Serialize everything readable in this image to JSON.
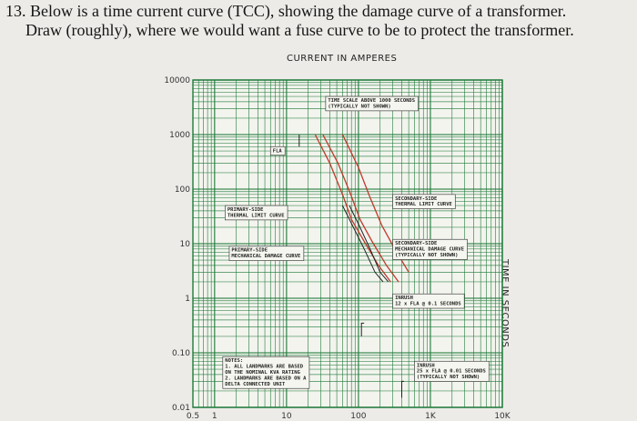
{
  "question": {
    "line1": "13. Below is a time current curve (TCC), showing the damage curve of a transformer.",
    "line2": "Draw (roughly), where we would want a fuse curve to be to protect the transformer."
  },
  "colors": {
    "grid": "#1f7a3a",
    "damage_curve": "#c0392b",
    "device_curve": "#222222",
    "background": "#ecebe8"
  },
  "chart_data": {
    "type": "line",
    "xlabel": "CURRENT IN AMPERES",
    "ylabel": "TIME IN SECONDS",
    "x_scale": "log",
    "y_scale": "log",
    "xlim": [
      0.5,
      10000
    ],
    "ylim": [
      0.01,
      10000
    ],
    "x_ticks": [
      {
        "value": 0.5,
        "label": "0.5"
      },
      {
        "value": 1,
        "label": "1"
      },
      {
        "value": 10,
        "label": "10"
      },
      {
        "value": 100,
        "label": "100"
      },
      {
        "value": 1000,
        "label": "1K"
      },
      {
        "value": 10000,
        "label": "10K"
      }
    ],
    "y_ticks": [
      {
        "value": 10000,
        "label": "10000"
      },
      {
        "value": 1000,
        "label": "1000"
      },
      {
        "value": 100,
        "label": "100"
      },
      {
        "value": 10,
        "label": "10"
      },
      {
        "value": 1,
        "label": "1"
      },
      {
        "value": 0.1,
        "label": "0.10"
      },
      {
        "value": 0.01,
        "label": "0.01"
      }
    ],
    "grid": true,
    "annotations": [
      {
        "lines": [
          "TIME SCALE ABOVE 1000 SECONDS",
          "(TYPICALLY NOT SHOWN)"
        ],
        "x": 35,
        "y": 5000,
        "wide": true
      },
      {
        "lines": [
          "FLA"
        ],
        "x": 6,
        "y": 600,
        "wide": false
      },
      {
        "lines": [
          "PRIMARY-SIDE",
          "THERMAL LIMIT CURVE"
        ],
        "x": 1.4,
        "y": 50,
        "wide": false
      },
      {
        "lines": [
          "PRIMARY-SIDE",
          "MECHANICAL DAMAGE CURVE"
        ],
        "x": 1.6,
        "y": 9,
        "wide": true
      },
      {
        "lines": [
          "SECONDARY-SIDE",
          "THERMAL LIMIT CURVE"
        ],
        "x": 300,
        "y": 80,
        "wide": true
      },
      {
        "lines": [
          "SECONDARY-SIDE",
          "MECHANICAL DAMAGE CURVE",
          "(TYPICALLY NOT SHOWN)"
        ],
        "x": 300,
        "y": 12,
        "wide": true
      },
      {
        "lines": [
          "INRUSH",
          "12 x FLA @ 0.1 SECONDS"
        ],
        "x": 300,
        "y": 1.2,
        "wide": true
      },
      {
        "lines": [
          "NOTES:",
          "1. ALL LANDMARKS ARE BASED",
          "ON THE NOMINAL KVA RATING",
          "2. LANDMARKS ARE BASED ON A",
          "DELTA CONNECTED UNIT"
        ],
        "x": 1.3,
        "y": 0.085,
        "wide": true
      },
      {
        "lines": [
          "INRUSH",
          "25 x FLA @ 0.01 SECONDS",
          "(TYPICALLY NOT SHOWN)"
        ],
        "x": 600,
        "y": 0.07,
        "wide": true
      }
    ],
    "series": [
      {
        "style": "damage",
        "points": [
          [
            25,
            1000
          ],
          [
            40,
            300
          ],
          [
            60,
            80
          ],
          [
            80,
            28
          ],
          [
            120,
            11
          ],
          [
            190,
            4
          ],
          [
            280,
            2
          ]
        ]
      },
      {
        "style": "damage",
        "points": [
          [
            32,
            1000
          ],
          [
            52,
            300
          ],
          [
            78,
            80
          ],
          [
            105,
            28
          ],
          [
            155,
            11
          ],
          [
            245,
            4
          ],
          [
            360,
            2
          ]
        ]
      },
      {
        "style": "damage",
        "points": [
          [
            60,
            1000
          ],
          [
            100,
            250
          ],
          [
            145,
            70
          ],
          [
            210,
            22
          ],
          [
            320,
            8
          ],
          [
            500,
            3
          ]
        ]
      },
      {
        "style": "device",
        "points": [
          [
            60,
            50
          ],
          [
            85,
            20
          ],
          [
            120,
            8
          ],
          [
            170,
            3
          ],
          [
            220,
            2
          ]
        ]
      },
      {
        "style": "device",
        "points": [
          [
            75,
            50
          ],
          [
            105,
            20
          ],
          [
            145,
            8
          ],
          [
            200,
            3
          ],
          [
            260,
            2
          ]
        ]
      },
      {
        "style": "device",
        "points": [
          [
            15,
            600
          ],
          [
            15,
            1000
          ]
        ]
      },
      {
        "style": "device",
        "points": [
          [
            110,
            0.2
          ],
          [
            110,
            0.35
          ],
          [
            120,
            0.35
          ]
        ]
      },
      {
        "style": "device",
        "points": [
          [
            400,
            0.015
          ],
          [
            400,
            0.03
          ],
          [
            430,
            0.03
          ]
        ]
      }
    ]
  }
}
